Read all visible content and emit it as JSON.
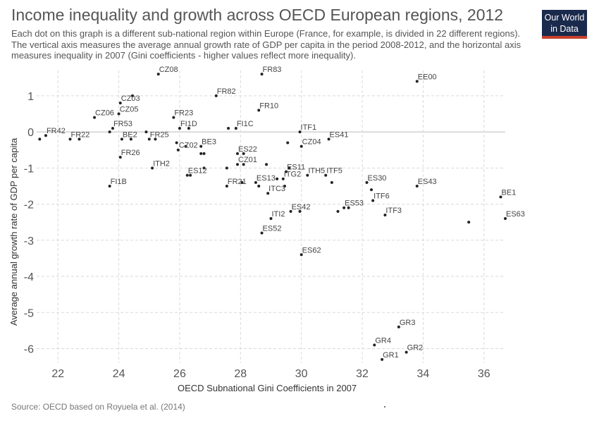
{
  "header": {
    "title": "Income inequality and growth across OECD European regions, 2012",
    "subtitle": "Each dot on this graph is a different sub-national region within Europe (France, for example, is divided in 22 different regions). The vertical axis measures the average annual growth rate of GDP per capita in the period 2008-2012, and the horizontal axis measures inequality in 2007 (Gini coefficients - higher values reflect more inequality).",
    "logo_line1": "Our World",
    "logo_line2": "in Data"
  },
  "footer": {
    "source": "Source: OECD based on Royuela et al. (2014)"
  },
  "colors": {
    "dot": "#222222",
    "grid": "#d9d9d9",
    "zero_line": "#bbbbbb",
    "label": "#444444",
    "logo_bg": "#1a2a4c",
    "logo_bar": "#c8412d"
  },
  "chart_data": {
    "type": "scatter",
    "xlabel": "OECD Subnational Gini Coefficients in 2007",
    "ylabel": "Average annual growth rate of GDP per capita",
    "xlim": [
      21.3,
      36.7
    ],
    "ylim": [
      -6.4,
      1.7
    ],
    "xticks": [
      22,
      24,
      26,
      28,
      30,
      32,
      34,
      36
    ],
    "yticks": [
      1,
      0,
      -1,
      -2,
      -3,
      -4,
      -5,
      -6
    ],
    "grid": true,
    "points": [
      {
        "x": 21.4,
        "y": -0.2
      },
      {
        "x": 21.6,
        "y": -0.1,
        "label": "FR42"
      },
      {
        "x": 22.4,
        "y": -0.2,
        "label": "FR22"
      },
      {
        "x": 22.7,
        "y": -0.2
      },
      {
        "x": 23.2,
        "y": 0.4,
        "label": "CZ06"
      },
      {
        "x": 23.7,
        "y": 0.0
      },
      {
        "x": 23.8,
        "y": 0.1,
        "label": "FR53"
      },
      {
        "x": 24.1,
        "y": -0.2,
        "label": "BE2"
      },
      {
        "x": 24.4,
        "y": -0.2
      },
      {
        "x": 24.05,
        "y": 0.8,
        "label": "CZ03"
      },
      {
        "x": 24.45,
        "y": 1.0
      },
      {
        "x": 24.0,
        "y": 0.5,
        "label": "CZ05"
      },
      {
        "x": 24.05,
        "y": -0.7,
        "label": "FR26"
      },
      {
        "x": 23.7,
        "y": -1.5,
        "label": "FI1B"
      },
      {
        "x": 24.9,
        "y": 0.0
      },
      {
        "x": 25.0,
        "y": -0.2,
        "label": "FR25"
      },
      {
        "x": 25.2,
        "y": -0.2
      },
      {
        "x": 25.3,
        "y": 1.6,
        "label": "CZ08"
      },
      {
        "x": 25.1,
        "y": -1.0,
        "label": "ITH2"
      },
      {
        "x": 25.8,
        "y": 0.4,
        "label": "FR23"
      },
      {
        "x": 26.0,
        "y": 0.1,
        "label": "FI1D"
      },
      {
        "x": 26.3,
        "y": 0.1
      },
      {
        "x": 25.9,
        "y": -0.3
      },
      {
        "x": 25.95,
        "y": -0.5,
        "label": "CZ02"
      },
      {
        "x": 26.2,
        "y": -0.4
      },
      {
        "x": 26.7,
        "y": -0.4,
        "label": "BE3"
      },
      {
        "x": 26.7,
        "y": -0.6
      },
      {
        "x": 26.8,
        "y": -0.6
      },
      {
        "x": 26.25,
        "y": -1.2,
        "label": "ES12"
      },
      {
        "x": 26.35,
        "y": -1.2
      },
      {
        "x": 26.8,
        "y": -1.0
      },
      {
        "x": 27.2,
        "y": 1.0,
        "label": "FR82"
      },
      {
        "x": 27.6,
        "y": 0.1
      },
      {
        "x": 27.85,
        "y": 0.1,
        "label": "FI1C"
      },
      {
        "x": 27.55,
        "y": -1.0
      },
      {
        "x": 27.55,
        "y": -1.5,
        "label": "FR21"
      },
      {
        "x": 27.9,
        "y": -0.6,
        "label": "ES22"
      },
      {
        "x": 28.1,
        "y": -0.6
      },
      {
        "x": 27.9,
        "y": -0.9,
        "label": "CZ01"
      },
      {
        "x": 28.1,
        "y": -0.9
      },
      {
        "x": 28.05,
        "y": -1.4
      },
      {
        "x": 28.85,
        "y": -0.9
      },
      {
        "x": 28.5,
        "y": -1.4,
        "label": "ES13"
      },
      {
        "x": 28.6,
        "y": -1.5
      },
      {
        "x": 28.9,
        "y": -1.7,
        "label": "ITC3"
      },
      {
        "x": 29.2,
        "y": -1.3
      },
      {
        "x": 29.4,
        "y": -1.3,
        "label": "ITG2"
      },
      {
        "x": 29.45,
        "y": -1.5
      },
      {
        "x": 29.5,
        "y": -1.1,
        "label": "ES11"
      },
      {
        "x": 29.6,
        "y": -1.0
      },
      {
        "x": 28.6,
        "y": 0.6,
        "label": "FR10"
      },
      {
        "x": 28.7,
        "y": 1.6,
        "label": "FR83"
      },
      {
        "x": 29.55,
        "y": -0.3
      },
      {
        "x": 29.95,
        "y": 0.0,
        "label": "ITF1"
      },
      {
        "x": 30.0,
        "y": -0.4,
        "label": "CZ04"
      },
      {
        "x": 30.9,
        "y": -0.2,
        "label": "ES41"
      },
      {
        "x": 30.2,
        "y": -1.2,
        "label": "ITH5"
      },
      {
        "x": 30.8,
        "y": -1.2,
        "label": "ITF5"
      },
      {
        "x": 31.0,
        "y": -1.4
      },
      {
        "x": 29.65,
        "y": -2.2,
        "label": "ES42"
      },
      {
        "x": 29.95,
        "y": -2.2
      },
      {
        "x": 29.0,
        "y": -2.4,
        "label": "ITI2"
      },
      {
        "x": 28.7,
        "y": -2.8,
        "label": "ES52"
      },
      {
        "x": 30.0,
        "y": -3.4,
        "label": "ES62"
      },
      {
        "x": 31.2,
        "y": -2.2
      },
      {
        "x": 31.4,
        "y": -2.1,
        "label": "ES53"
      },
      {
        "x": 31.55,
        "y": -2.1
      },
      {
        "x": 32.15,
        "y": -1.4,
        "label": "ES30"
      },
      {
        "x": 32.3,
        "y": -1.6
      },
      {
        "x": 32.35,
        "y": -1.9,
        "label": "ITF6"
      },
      {
        "x": 32.75,
        "y": -2.3,
        "label": "ITF3"
      },
      {
        "x": 33.8,
        "y": -1.5,
        "label": "ES43"
      },
      {
        "x": 33.8,
        "y": 1.4,
        "label": "EE00"
      },
      {
        "x": 35.5,
        "y": -2.5
      },
      {
        "x": 36.55,
        "y": -1.8,
        "label": "BE1"
      },
      {
        "x": 36.7,
        "y": -2.4,
        "label": "ES63"
      },
      {
        "x": 33.2,
        "y": -5.4,
        "label": "GR3"
      },
      {
        "x": 32.4,
        "y": -5.9,
        "label": "GR4"
      },
      {
        "x": 33.45,
        "y": -6.1,
        "label": "GR2"
      },
      {
        "x": 32.65,
        "y": -6.3,
        "label": "GR1"
      }
    ]
  }
}
